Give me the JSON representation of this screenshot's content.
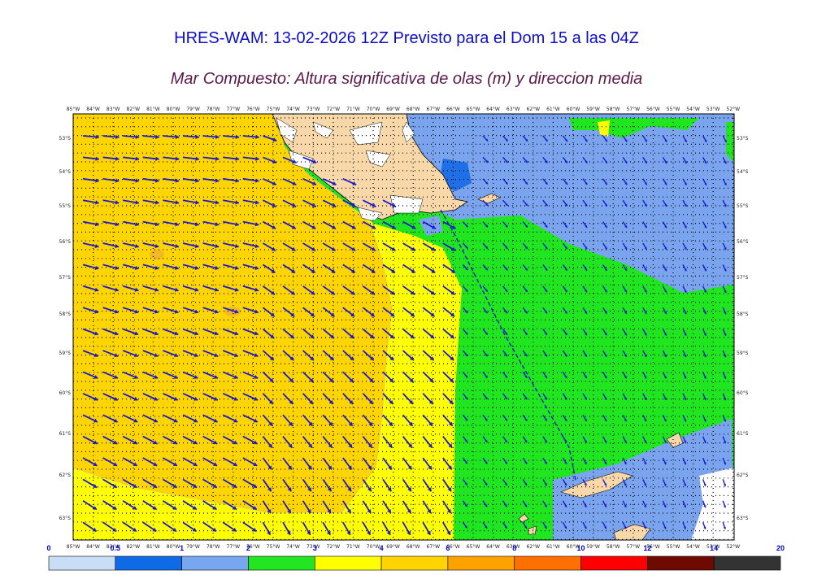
{
  "header": {
    "title": "HRES-WAM: 13-02-2026 12Z Previsto para el Dom 15 a las 04Z",
    "subtitle": "Mar Compuesto: Altura significativa de olas (m) y direccion media"
  },
  "map": {
    "lon_labels": [
      "85°W",
      "84°W",
      "83°W",
      "82°W",
      "81°W",
      "80°W",
      "79°W",
      "78°W",
      "77°W",
      "76°W",
      "75°W",
      "74°W",
      "73°W",
      "72°W",
      "71°W",
      "70°W",
      "69°W",
      "68°W",
      "67°W",
      "66°W",
      "65°W",
      "64°W",
      "63°W",
      "62°W",
      "61°W",
      "60°W",
      "59°W",
      "58°W",
      "57°W",
      "56°W",
      "55°W",
      "54°W",
      "53°W",
      "52°W"
    ],
    "lat_labels": [
      "53°S",
      "54°S",
      "55°S",
      "56°S",
      "57°S",
      "58°S",
      "59°S",
      "60°S",
      "61°S",
      "62°S",
      "63°S"
    ],
    "wave_colors": {
      "z0_5": "#c5dcf7",
      "z1": "#1f6fe6",
      "z2": "#7aa5ee",
      "z3": "#1fe61f",
      "z4": "#ffff00",
      "z5": "#ffd500",
      "land": "#f8d8a8",
      "ice": "#ffffff",
      "arrow": "#1a1acc"
    }
  },
  "colorbar": {
    "ticks": [
      "0",
      "0.5",
      "1",
      "2",
      "3",
      "4",
      "6",
      "8",
      "10",
      "12",
      "14",
      "20"
    ],
    "colors": [
      "#c8ddf6",
      "#0f6ae6",
      "#78a6ef",
      "#22e622",
      "#ffff00",
      "#ffd400",
      "#ffa200",
      "#ff7000",
      "#ff0000",
      "#6e0a00",
      "#333333"
    ]
  }
}
